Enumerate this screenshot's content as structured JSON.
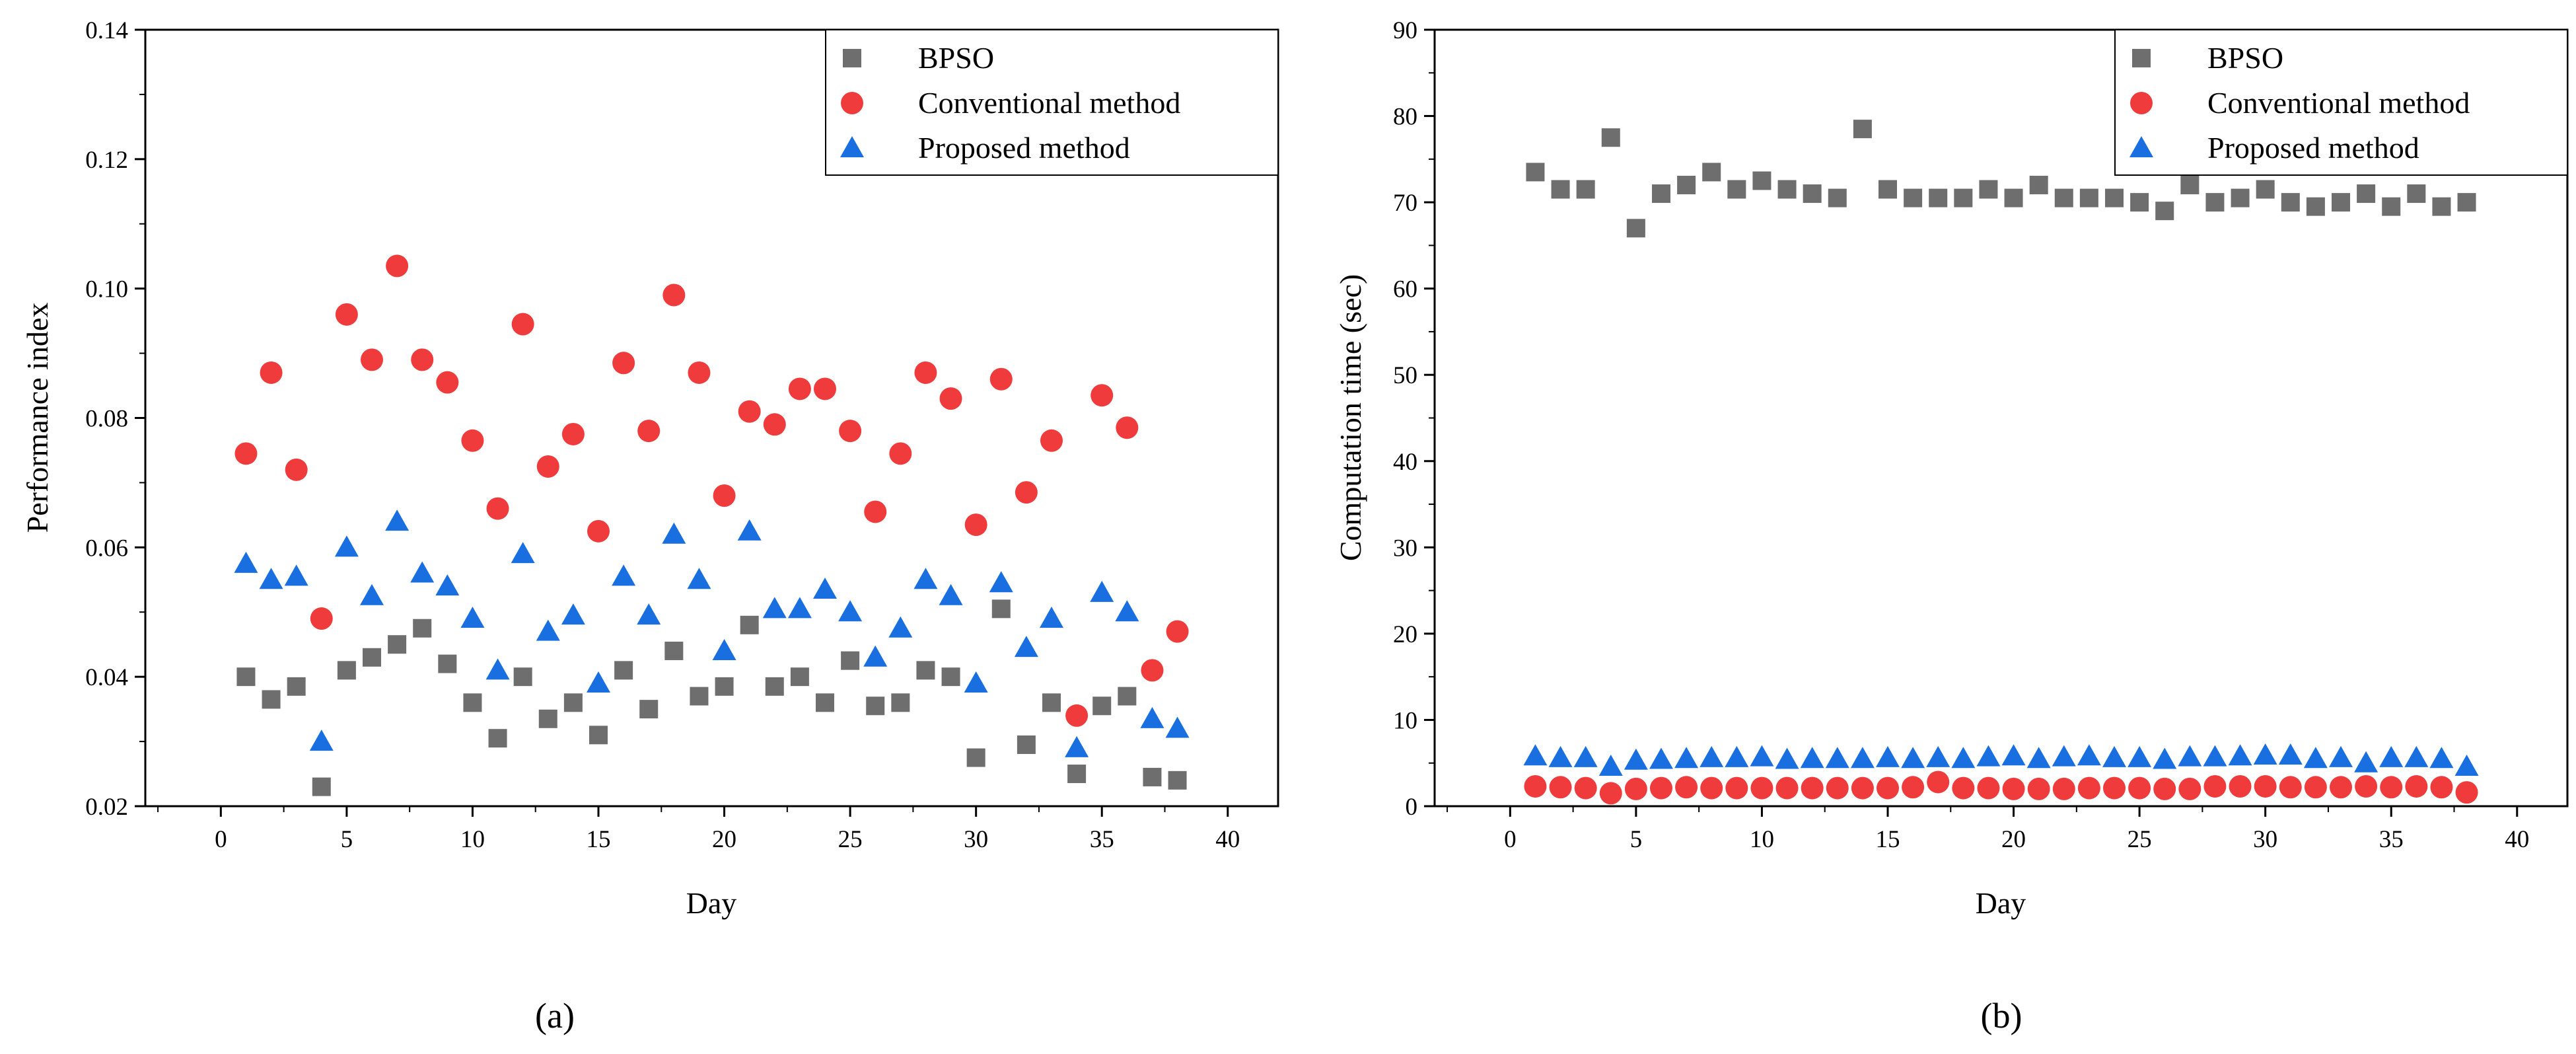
{
  "series_styles": [
    {
      "name": "BPSO",
      "color": "#6e6e6e",
      "marker": "square"
    },
    {
      "name": "Conventional method",
      "color": "#ef3b3b",
      "marker": "circle"
    },
    {
      "name": "Proposed method",
      "color": "#1a6fe0",
      "marker": "triangle"
    }
  ],
  "chart_data": [
    {
      "type": "scatter",
      "panel_label": "(a)",
      "xlabel": "Day",
      "ylabel": "Performance index",
      "xlim": [
        -3,
        42
      ],
      "ylim": [
        0.02,
        0.14
      ],
      "xticks": [
        0,
        5,
        10,
        15,
        20,
        25,
        30,
        35,
        40
      ],
      "yticks": [
        0.02,
        0.04,
        0.06,
        0.08,
        0.1,
        0.12,
        0.14
      ],
      "ytick_labels": [
        "0.02",
        "0.04",
        "0.06",
        "0.08",
        "0.10",
        "0.12",
        "0.14"
      ],
      "legend_position": "top-right",
      "x": [
        1,
        2,
        3,
        4,
        5,
        6,
        7,
        8,
        9,
        10,
        11,
        12,
        13,
        14,
        15,
        16,
        17,
        18,
        19,
        20,
        21,
        22,
        23,
        24,
        25,
        26,
        27,
        28,
        29,
        30,
        31,
        32,
        33,
        34,
        35,
        36,
        37,
        38
      ],
      "series": [
        {
          "name": "BPSO",
          "values": [
            0.04,
            0.0365,
            0.0385,
            0.023,
            0.041,
            0.043,
            0.045,
            0.0475,
            0.042,
            0.036,
            0.0305,
            0.04,
            0.0335,
            0.036,
            0.031,
            0.041,
            0.035,
            0.044,
            0.037,
            0.0385,
            0.048,
            0.0385,
            0.04,
            0.036,
            0.0425,
            0.0355,
            0.036,
            0.041,
            0.04,
            0.0275,
            0.0505,
            0.0295,
            0.036,
            0.025,
            0.0355,
            0.037,
            0.0245,
            0.024
          ]
        },
        {
          "name": "Conventional method",
          "values": [
            0.0745,
            0.087,
            0.072,
            0.049,
            0.096,
            0.089,
            0.1035,
            0.089,
            0.0855,
            0.0765,
            0.066,
            0.0945,
            0.0725,
            0.0775,
            0.0625,
            0.0885,
            0.078,
            0.099,
            0.087,
            0.068,
            0.081,
            0.079,
            0.0845,
            0.0845,
            0.078,
            0.0655,
            0.0745,
            0.087,
            0.083,
            0.0635,
            0.086,
            0.0685,
            0.0765,
            0.034,
            0.0835,
            0.0785,
            0.041,
            0.047
          ]
        },
        {
          "name": "Proposed method",
          "values": [
            0.0575,
            0.055,
            0.0555,
            0.03,
            0.06,
            0.0525,
            0.064,
            0.056,
            0.054,
            0.049,
            0.041,
            0.059,
            0.047,
            0.0495,
            0.039,
            0.0555,
            0.0495,
            0.062,
            0.055,
            0.044,
            0.0625,
            0.0505,
            0.0505,
            0.0535,
            0.05,
            0.043,
            0.0475,
            0.055,
            0.0525,
            0.039,
            0.0545,
            0.0445,
            0.049,
            0.029,
            0.053,
            0.05,
            0.0335,
            0.032
          ]
        }
      ]
    },
    {
      "type": "scatter",
      "panel_label": "(b)",
      "xlabel": "Day",
      "ylabel": "Computation time (sec)",
      "xlim": [
        -3,
        42
      ],
      "ylim": [
        0,
        90
      ],
      "xticks": [
        0,
        5,
        10,
        15,
        20,
        25,
        30,
        35,
        40
      ],
      "yticks": [
        0,
        10,
        20,
        30,
        40,
        50,
        60,
        70,
        80,
        90
      ],
      "ytick_labels": [
        "0",
        "10",
        "20",
        "30",
        "40",
        "50",
        "60",
        "70",
        "80",
        "90"
      ],
      "legend_position": "top-right",
      "x": [
        1,
        2,
        3,
        4,
        5,
        6,
        7,
        8,
        9,
        10,
        11,
        12,
        13,
        14,
        15,
        16,
        17,
        18,
        19,
        20,
        21,
        22,
        23,
        24,
        25,
        26,
        27,
        28,
        29,
        30,
        31,
        32,
        33,
        34,
        35,
        36,
        37,
        38
      ],
      "series": [
        {
          "name": "BPSO",
          "values": [
            73.5,
            71.5,
            71.5,
            77.5,
            67,
            71,
            72,
            73.5,
            71.5,
            72.5,
            71.5,
            71,
            70.5,
            78.5,
            71.5,
            70.5,
            70.5,
            70.5,
            71.5,
            70.5,
            72,
            70.5,
            70.5,
            70.5,
            70,
            69,
            72,
            70,
            70.5,
            71.5,
            70,
            69.5,
            70,
            71,
            69.5,
            71,
            69.5,
            70
          ]
        },
        {
          "name": "Conventional method",
          "values": [
            2.3,
            2.2,
            2.1,
            1.5,
            2.0,
            2.1,
            2.2,
            2.1,
            2.1,
            2.1,
            2.1,
            2.1,
            2.1,
            2.1,
            2.1,
            2.2,
            2.8,
            2.1,
            2.1,
            2.0,
            2.0,
            2.0,
            2.1,
            2.1,
            2.1,
            2.0,
            2.0,
            2.3,
            2.3,
            2.3,
            2.2,
            2.2,
            2.2,
            2.3,
            2.2,
            2.3,
            2.2,
            1.6
          ]
        },
        {
          "name": "Proposed method",
          "values": [
            5.8,
            5.6,
            5.6,
            4.6,
            5.3,
            5.4,
            5.5,
            5.6,
            5.6,
            5.7,
            5.4,
            5.5,
            5.5,
            5.5,
            5.6,
            5.5,
            5.6,
            5.5,
            5.7,
            5.8,
            5.5,
            5.7,
            5.8,
            5.6,
            5.6,
            5.4,
            5.7,
            5.7,
            5.8,
            5.9,
            5.9,
            5.5,
            5.6,
            5.0,
            5.6,
            5.6,
            5.5,
            4.6
          ]
        }
      ]
    }
  ]
}
